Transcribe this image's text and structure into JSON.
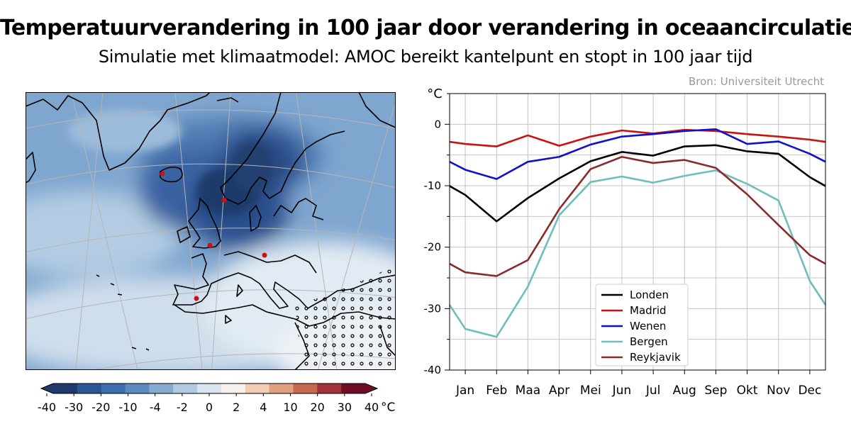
{
  "header": {
    "title": "Temperatuurverandering in 100 jaar door verandering in oceaancirculatie",
    "subtitle": "Simulatie met klimaatmodel: AMOC bereikt kantelpunt en stopt in 100 jaar tijd",
    "source": "Bron: Universiteit Utrecht"
  },
  "colorbar": {
    "ticks": [
      "-40",
      "-30",
      "-20",
      "-10",
      "-4",
      "-2",
      "0",
      "2",
      "4",
      "10",
      "20",
      "30",
      "40"
    ],
    "unit": "°C",
    "colors": [
      "#1f3a6b",
      "#2c5595",
      "#3b6fb0",
      "#5b8cc1",
      "#86acd2",
      "#b2cbe2",
      "#d8e4ef",
      "#f7f2ee",
      "#f1cdb6",
      "#e2a083",
      "#c8684f",
      "#a3333a",
      "#6f0f26"
    ]
  },
  "map": {
    "city_marker_color": "#d01010",
    "cities_marked": 5
  },
  "chart_data": {
    "type": "line",
    "ylabel": "°C",
    "ylim": [
      -40,
      5
    ],
    "yticks": [
      "0",
      "-10",
      "-20",
      "-30",
      "-40"
    ],
    "categories": [
      "Jan",
      "Feb",
      "Maa",
      "Apr",
      "Mei",
      "Jun",
      "Jul",
      "Aug",
      "Sep",
      "Okt",
      "Nov",
      "Dec"
    ],
    "grid": true,
    "legend_position": "bottom-center",
    "series": [
      {
        "name": "Londen",
        "color": "#000000",
        "values": [
          -11.5,
          -15.8,
          -12,
          -8.8,
          -6,
          -4.5,
          -5.1,
          -3.6,
          -3.4,
          -4.4,
          -4.8,
          -8.6
        ]
      },
      {
        "name": "Madrid",
        "color": "#cc1111",
        "values": [
          -3.2,
          -3.6,
          -1.8,
          -3.5,
          -2,
          -1,
          -1.5,
          -0.9,
          -1.1,
          -1.6,
          -2,
          -2.5
        ]
      },
      {
        "name": "Wenen",
        "color": "#1111cc",
        "values": [
          -7.4,
          -8.9,
          -6.1,
          -5.3,
          -3.3,
          -2,
          -1.6,
          -1.1,
          -0.8,
          -3.2,
          -2.8,
          -4.8
        ]
      },
      {
        "name": "Bergen",
        "color": "#6fbdbd",
        "values": [
          -33.3,
          -34.6,
          -26.4,
          -14.8,
          -9.4,
          -8.5,
          -9.5,
          -8.4,
          -7.5,
          -9.7,
          -12.4,
          -25.5
        ]
      },
      {
        "name": "Reykjavik",
        "color": "#8b2a2a",
        "values": [
          -24.1,
          -24.7,
          -22.1,
          -13.8,
          -7.3,
          -5.3,
          -6.3,
          -5.8,
          -7.1,
          -11.4,
          -16.4,
          -21.3
        ]
      }
    ]
  }
}
